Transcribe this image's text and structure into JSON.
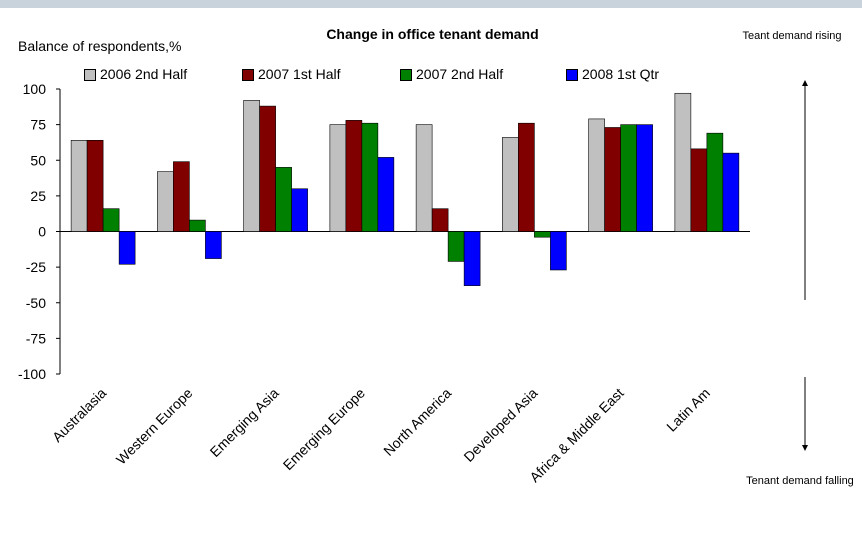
{
  "chart_data": {
    "type": "bar",
    "title": "Change in office tenant demand",
    "ylabel": "Balance of respondents,%",
    "xlabel": "",
    "ylim": [
      -100,
      100
    ],
    "yticks": [
      100,
      75,
      50,
      25,
      0,
      -25,
      -50,
      -75,
      -100
    ],
    "grid": false,
    "legend_position": "top",
    "categories": [
      "Australasia",
      "Western Europe",
      "Emerging Asia",
      "Emerging Europe",
      "North America",
      "Developed Asia",
      "Africa & Middle East",
      "Latin Am"
    ],
    "series": [
      {
        "name": "2006 2nd Half",
        "color": "#c0c0c0",
        "values": [
          64,
          42,
          92,
          75,
          75,
          66,
          79,
          97
        ]
      },
      {
        "name": "2007 1st Half",
        "color": "#800000",
        "values": [
          64,
          49,
          88,
          78,
          16,
          76,
          73,
          58
        ]
      },
      {
        "name": "2007 2nd Half",
        "color": "#008000",
        "values": [
          16,
          8,
          45,
          76,
          -21,
          -4,
          75,
          69
        ]
      },
      {
        "name": "2008 1st Qtr",
        "color": "#0000ff",
        "values": [
          -23,
          -19,
          30,
          52,
          -38,
          -27,
          75,
          55
        ]
      }
    ],
    "annotations": {
      "rising": "Teant demand rising",
      "falling": "Tenant demand falling"
    }
  }
}
